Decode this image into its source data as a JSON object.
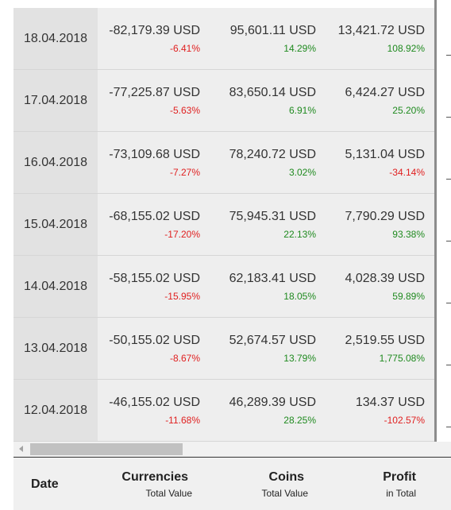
{
  "rows": [
    {
      "date": "18.04.2018",
      "currencies": {
        "value": "-82,179.39 USD",
        "pct": "-6.41%"
      },
      "coins": {
        "value": "95,601.11 USD",
        "pct": "14.29%"
      },
      "profit": {
        "value": "13,421.72 USD",
        "pct": "108.92%"
      }
    },
    {
      "date": "17.04.2018",
      "currencies": {
        "value": "-77,225.87 USD",
        "pct": "-5.63%"
      },
      "coins": {
        "value": "83,650.14 USD",
        "pct": "6.91%"
      },
      "profit": {
        "value": "6,424.27 USD",
        "pct": "25.20%"
      }
    },
    {
      "date": "16.04.2018",
      "currencies": {
        "value": "-73,109.68 USD",
        "pct": "-7.27%"
      },
      "coins": {
        "value": "78,240.72 USD",
        "pct": "3.02%"
      },
      "profit": {
        "value": "5,131.04 USD",
        "pct": "-34.14%"
      }
    },
    {
      "date": "15.04.2018",
      "currencies": {
        "value": "-68,155.02 USD",
        "pct": "-17.20%"
      },
      "coins": {
        "value": "75,945.31 USD",
        "pct": "22.13%"
      },
      "profit": {
        "value": "7,790.29 USD",
        "pct": "93.38%"
      }
    },
    {
      "date": "14.04.2018",
      "currencies": {
        "value": "-58,155.02 USD",
        "pct": "-15.95%"
      },
      "coins": {
        "value": "62,183.41 USD",
        "pct": "18.05%"
      },
      "profit": {
        "value": "4,028.39 USD",
        "pct": "59.89%"
      }
    },
    {
      "date": "13.04.2018",
      "currencies": {
        "value": "-50,155.02 USD",
        "pct": "-8.67%"
      },
      "coins": {
        "value": "52,674.57 USD",
        "pct": "13.79%"
      },
      "profit": {
        "value": "2,519.55 USD",
        "pct": "1,775.08%"
      }
    },
    {
      "date": "12.04.2018",
      "currencies": {
        "value": "-46,155.02 USD",
        "pct": "-11.68%"
      },
      "coins": {
        "value": "46,289.39 USD",
        "pct": "28.25%"
      },
      "profit": {
        "value": "134.37 USD",
        "pct": "-102.57%"
      }
    }
  ],
  "footer": {
    "date": "Date",
    "currencies": "Currencies",
    "currencies_sub": "Total Value",
    "coins": "Coins",
    "coins_sub": "Total Value",
    "profit": "Profit",
    "profit_sub": "in Total"
  },
  "colors": {
    "negative": "#e02020",
    "positive": "#1f8a1f"
  }
}
